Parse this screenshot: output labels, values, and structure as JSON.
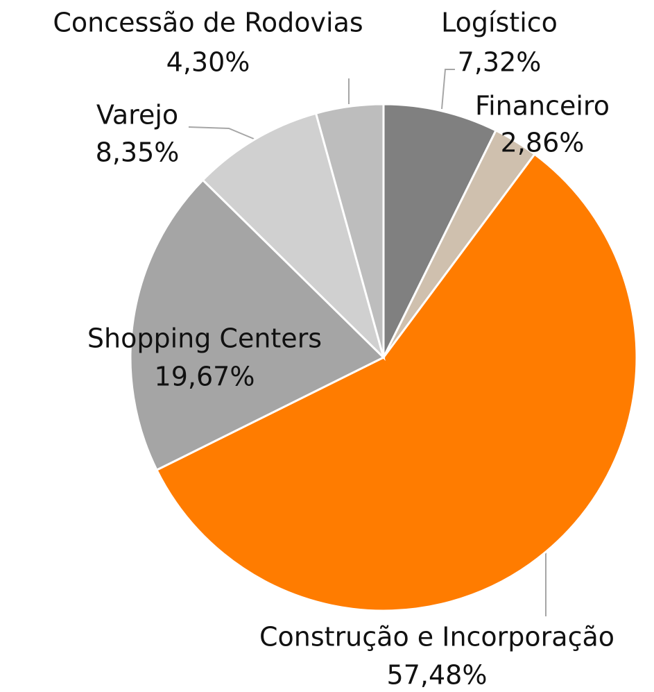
{
  "chart_data": {
    "type": "pie",
    "categories": [
      "Logístico",
      "Financeiro",
      "Construção e Incorporação",
      "Shopping Centers",
      "Varejo",
      "Concessão de Rodovias"
    ],
    "values": [
      7.32,
      2.86,
      57.48,
      19.67,
      8.35,
      4.3
    ],
    "value_labels": [
      "7,32%",
      "2,86%",
      "57,48%",
      "19,67%",
      "8,35%",
      "4,30%"
    ],
    "colors": [
      "#808080",
      "#cfc0ae",
      "#ff7c00",
      "#a5a5a5",
      "#d0d0d0",
      "#bdbdbd"
    ]
  }
}
